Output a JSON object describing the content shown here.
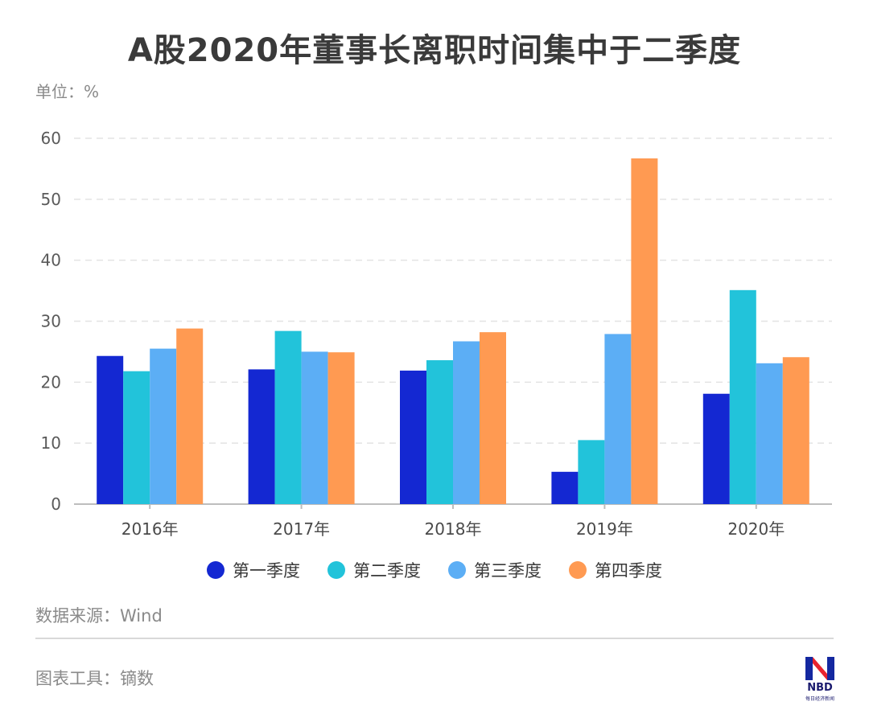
{
  "title": "A股2020年董事长离职时间集中于二季度",
  "unit_label": "单位：%",
  "source": "数据来源：Wind",
  "tool": "图表工具：镝数",
  "logo": {
    "text": "NBD",
    "subtext": "每日经济新闻"
  },
  "colors": {
    "q1": "#1428d2",
    "q2": "#22c3da",
    "q3": "#5caef5",
    "q4": "#ff9a52",
    "grid": "#e3e3e3",
    "axis": "#bdbdbd"
  },
  "chart_data": {
    "type": "bar",
    "title": "A股2020年董事长离职时间集中于二季度",
    "xlabel": "",
    "ylabel": "单位：%",
    "ylim": [
      0,
      60
    ],
    "yticks": [
      0,
      10,
      20,
      30,
      40,
      50,
      60
    ],
    "grid": true,
    "legend_position": "bottom",
    "categories": [
      "2016年",
      "2017年",
      "2018年",
      "2019年",
      "2020年"
    ],
    "series": [
      {
        "name": "第一季度",
        "color_key": "q1",
        "values": [
          24.3,
          22.1,
          21.9,
          5.3,
          18.1
        ]
      },
      {
        "name": "第二季度",
        "color_key": "q2",
        "values": [
          21.8,
          28.4,
          23.6,
          10.5,
          35.1
        ]
      },
      {
        "name": "第三季度",
        "color_key": "q3",
        "values": [
          25.5,
          25.0,
          26.7,
          27.9,
          23.1
        ]
      },
      {
        "name": "第四季度",
        "color_key": "q4",
        "values": [
          28.8,
          24.9,
          28.2,
          56.7,
          24.1
        ]
      }
    ]
  }
}
